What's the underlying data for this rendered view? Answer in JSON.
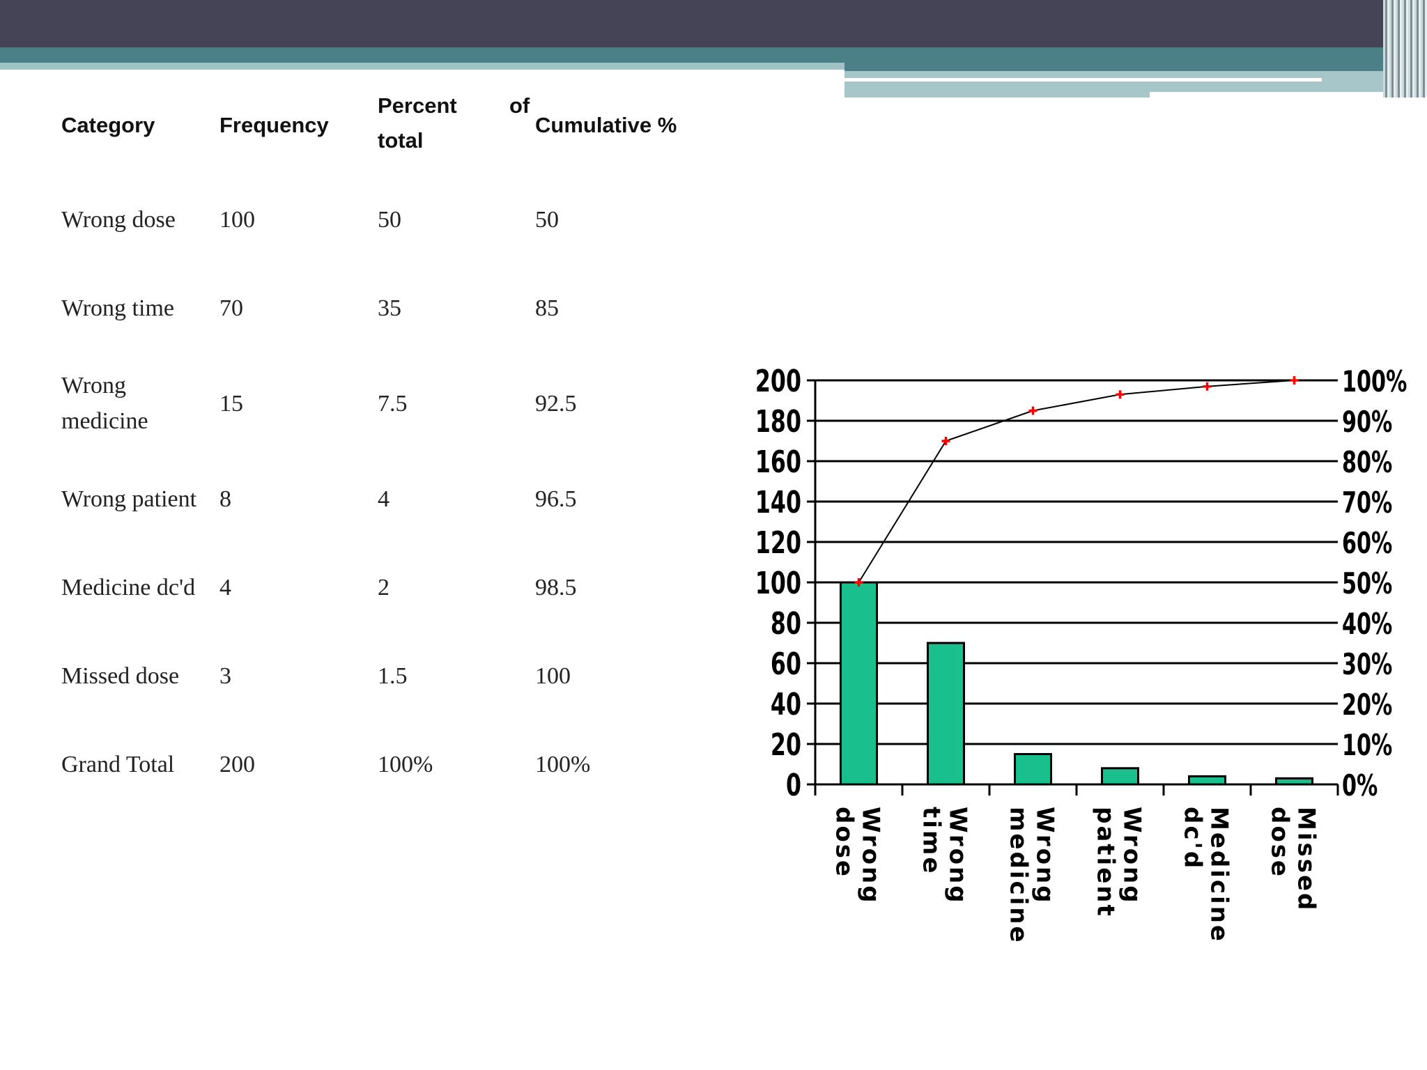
{
  "table": {
    "headers": {
      "category": "Category",
      "frequency": "Frequency",
      "percent_line1": "Percent",
      "percent_of": "of",
      "percent_line2": "total",
      "cumulative": "Cumulative %"
    },
    "rows": [
      {
        "category": "Wrong dose",
        "frequency": "100",
        "percent": "50",
        "cumulative": "50"
      },
      {
        "category": "Wrong time",
        "frequency": "70",
        "percent": "35",
        "cumulative": "85"
      },
      {
        "category_line1": "Wrong",
        "category_line2": "medicine",
        "frequency": "15",
        "percent": "7.5",
        "cumulative": "92.5"
      },
      {
        "category": "Wrong patient",
        "frequency": "8",
        "percent": "4",
        "cumulative": "96.5"
      },
      {
        "category": "Medicine dc'd",
        "frequency": "4",
        "percent": "2",
        "cumulative": "98.5"
      },
      {
        "category": "Missed dose",
        "frequency": "3",
        "percent": "1.5",
        "cumulative": "100"
      },
      {
        "category": "Grand Total",
        "frequency": "200",
        "percent": "100%",
        "cumulative": "100%"
      }
    ]
  },
  "chart_data": {
    "type": "bar",
    "title": "",
    "categories": [
      [
        "Wrong",
        "dose"
      ],
      [
        "Wrong",
        "time"
      ],
      [
        "Wrong",
        "medicine"
      ],
      [
        "Wrong",
        "patient"
      ],
      [
        "Medicine",
        "dc'd"
      ],
      [
        "Missed",
        "dose"
      ]
    ],
    "series": [
      {
        "name": "Frequency",
        "type": "bar",
        "axis": "left",
        "values": [
          100,
          70,
          15,
          8,
          4,
          3
        ]
      },
      {
        "name": "Cumulative %",
        "type": "line",
        "axis": "right",
        "values": [
          50,
          85,
          92.5,
          96.5,
          98.5,
          100
        ]
      }
    ],
    "ylim": [
      0,
      200
    ],
    "y_ticks": [
      "0",
      "20",
      "40",
      "60",
      "80",
      "100",
      "120",
      "140",
      "160",
      "180",
      "200"
    ],
    "y2lim": [
      0,
      100
    ],
    "y2_ticks": [
      "0%",
      "10%",
      "20%",
      "30%",
      "40%",
      "50%",
      "60%",
      "70%",
      "80%",
      "90%",
      "100%"
    ],
    "grid": true,
    "colors": {
      "bar": "#1abf8e",
      "bar_edge": "#000000",
      "line": "#000000",
      "marker": "#ff0000"
    }
  }
}
